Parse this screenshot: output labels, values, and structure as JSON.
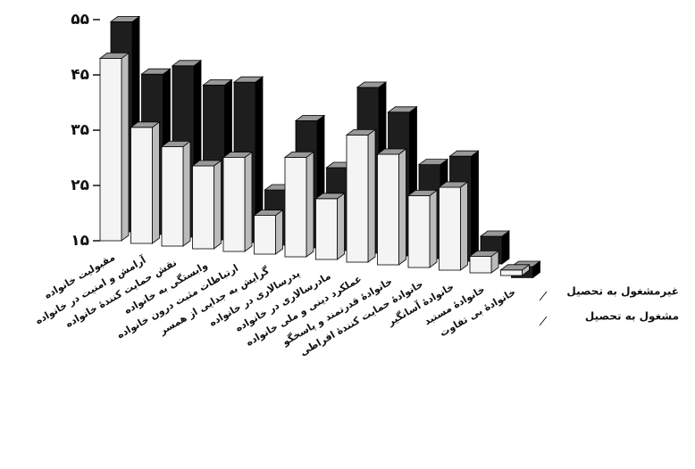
{
  "chart_data": {
    "type": "bar3d",
    "categories": [
      "مقبولیت خانواده",
      "آرامش و امنیت در خانواده",
      "نقش حمایت کنندهٔ خانواده",
      "وابستگی به خانواده",
      "ارتباطات مثبت درون خانواده",
      "گرایش به جدایی از همسر",
      "پدرسالاری در خانواده",
      "مادرسالاری در خانواده",
      "عملکرد دینی و ملی خانواده",
      "خانوادهٔ قدرتمند و پاسخگو",
      "خانوادهٔ حمایت کنندهٔ افراطی",
      "خانوادهٔ آسانگیر",
      "خانوادهٔ مستبد",
      "خانوادهٔ بی تفاوت"
    ],
    "series": [
      {
        "name": "غیرمشغول به تحصیل",
        "color": "#1e1e1e",
        "values": [
          53,
          44,
          46,
          43,
          44,
          25,
          38,
          30,
          45,
          41,
          32,
          34,
          20,
          13
        ]
      },
      {
        "name": "مشغول به تحصیل",
        "color": "#f4f4f4",
        "values": [
          48,
          36,
          33,
          30,
          32,
          22,
          33,
          26,
          38,
          35,
          28,
          30,
          18,
          16
        ]
      }
    ],
    "ylim": [
      15,
      55
    ],
    "yticks": [
      {
        "value": 15,
        "label": "۱۵"
      },
      {
        "value": 25,
        "label": "۲۵"
      },
      {
        "value": 35,
        "label": "۳۵"
      },
      {
        "value": 45,
        "label": "۴۵"
      },
      {
        "value": 55,
        "label": "۵۵"
      }
    ]
  }
}
